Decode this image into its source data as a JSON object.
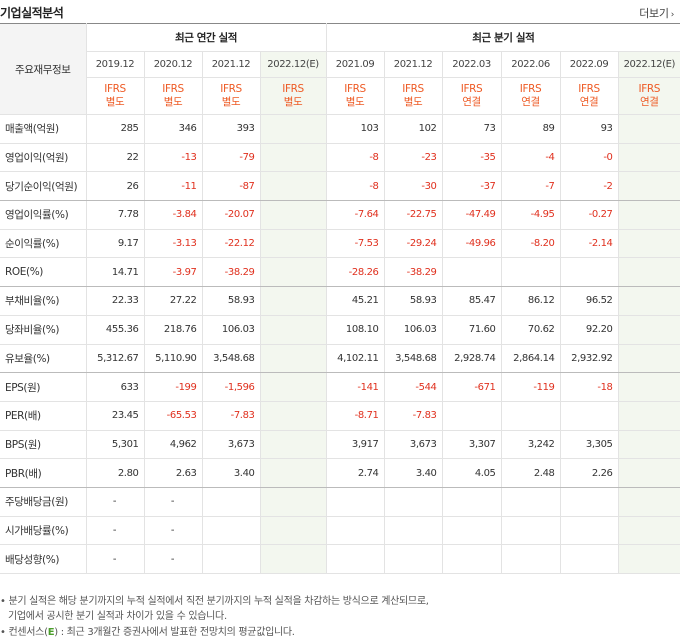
{
  "header": {
    "title": "기업실적분석",
    "more_label": "더보기"
  },
  "table": {
    "row_header_label": "주요재무정보",
    "groups": {
      "annual": "최근 연간 실적",
      "quarterly": "최근 분기 실적"
    },
    "periods": [
      "2019.12",
      "2020.12",
      "2021.12",
      "2022.12(E)",
      "2021.09",
      "2021.12",
      "2022.03",
      "2022.06",
      "2022.09",
      "2022.12(E)"
    ],
    "kinds": [
      {
        "l1": "IFRS",
        "l2": "별도"
      },
      {
        "l1": "IFRS",
        "l2": "별도"
      },
      {
        "l1": "IFRS",
        "l2": "별도"
      },
      {
        "l1": "IFRS",
        "l2": "별도"
      },
      {
        "l1": "IFRS",
        "l2": "별도"
      },
      {
        "l1": "IFRS",
        "l2": "별도"
      },
      {
        "l1": "IFRS",
        "l2": "연결"
      },
      {
        "l1": "IFRS",
        "l2": "연결"
      },
      {
        "l1": "IFRS",
        "l2": "연결"
      },
      {
        "l1": "IFRS",
        "l2": "연결"
      }
    ],
    "rows": [
      {
        "label": "매출액(억원)",
        "values": [
          "285",
          "346",
          "393",
          "",
          "103",
          "102",
          "73",
          "89",
          "93",
          ""
        ]
      },
      {
        "label": "영업이익(억원)",
        "values": [
          "22",
          "-13",
          "-79",
          "",
          "-8",
          "-23",
          "-35",
          "-4",
          "-0",
          ""
        ]
      },
      {
        "label": "당기순이익(억원)",
        "values": [
          "26",
          "-11",
          "-87",
          "",
          "-8",
          "-30",
          "-37",
          "-7",
          "-2",
          ""
        ]
      },
      {
        "label": "영업이익률(%)",
        "values": [
          "7.78",
          "-3.84",
          "-20.07",
          "",
          "-7.64",
          "-22.75",
          "-47.49",
          "-4.95",
          "-0.27",
          ""
        ]
      },
      {
        "label": "순이익률(%)",
        "values": [
          "9.17",
          "-3.13",
          "-22.12",
          "",
          "-7.53",
          "-29.24",
          "-49.96",
          "-8.20",
          "-2.14",
          ""
        ]
      },
      {
        "label": "ROE(%)",
        "values": [
          "14.71",
          "-3.97",
          "-38.29",
          "",
          "-28.26",
          "-38.29",
          "",
          "",
          "",
          ""
        ]
      },
      {
        "label": "부채비율(%)",
        "values": [
          "22.33",
          "27.22",
          "58.93",
          "",
          "45.21",
          "58.93",
          "85.47",
          "86.12",
          "96.52",
          ""
        ]
      },
      {
        "label": "당좌비율(%)",
        "values": [
          "455.36",
          "218.76",
          "106.03",
          "",
          "108.10",
          "106.03",
          "71.60",
          "70.62",
          "92.20",
          ""
        ]
      },
      {
        "label": "유보율(%)",
        "values": [
          "5,312.67",
          "5,110.90",
          "3,548.68",
          "",
          "4,102.11",
          "3,548.68",
          "2,928.74",
          "2,864.14",
          "2,932.92",
          ""
        ]
      },
      {
        "label": "EPS(원)",
        "values": [
          "633",
          "-199",
          "-1,596",
          "",
          "-141",
          "-544",
          "-671",
          "-119",
          "-18",
          ""
        ]
      },
      {
        "label": "PER(배)",
        "values": [
          "23.45",
          "-65.53",
          "-7.83",
          "",
          "-8.71",
          "-7.83",
          "",
          "",
          "",
          ""
        ]
      },
      {
        "label": "BPS(원)",
        "values": [
          "5,301",
          "4,962",
          "3,673",
          "",
          "3,917",
          "3,673",
          "3,307",
          "3,242",
          "3,305",
          ""
        ]
      },
      {
        "label": "PBR(배)",
        "values": [
          "2.80",
          "2.63",
          "3.40",
          "",
          "2.74",
          "3.40",
          "4.05",
          "2.48",
          "2.26",
          ""
        ]
      },
      {
        "label": "주당배당금(원)",
        "values": [
          "-",
          "-",
          "",
          "",
          "",
          "",
          "",
          "",
          "",
          ""
        ]
      },
      {
        "label": "시가배당률(%)",
        "values": [
          "-",
          "-",
          "",
          "",
          "",
          "",
          "",
          "",
          "",
          ""
        ]
      },
      {
        "label": "배당성향(%)",
        "values": [
          "-",
          "-",
          "",
          "",
          "",
          "",
          "",
          "",
          "",
          ""
        ]
      }
    ]
  },
  "notes": {
    "line1": "• 분기 실적은 해당 분기까지의 누적 실적에서 직전 분기까지의 누적 실적을 차감하는 방식으로 계산되므로,",
    "line2": "기업에서 공시한 분기 실적과 차이가 있을 수 있습니다.",
    "line3_prefix": "• 컨센서스(",
    "line3_e": "E",
    "line3_suffix": ") : 최근 3개월간 증권사에서 발표한 전망치의 평균값입니다."
  },
  "colors": {
    "negative": "#e0301e",
    "ifrs": "#ee5a24",
    "estimate_bg": "#f3f7ef",
    "consensus_e": "#4b9e2b"
  }
}
